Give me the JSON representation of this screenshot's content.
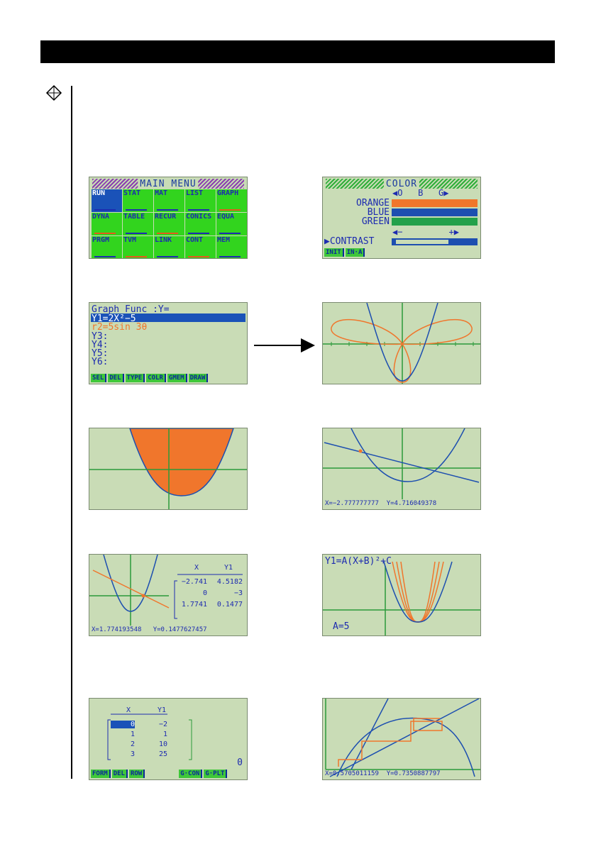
{
  "screens": {
    "main_menu": {
      "title": "MAIN MENU",
      "items": [
        {
          "label": "RUN"
        },
        {
          "label": "STAT"
        },
        {
          "label": "MAT"
        },
        {
          "label": "LIST"
        },
        {
          "label": "GRAPH"
        },
        {
          "label": "DYNA"
        },
        {
          "label": "TABLE"
        },
        {
          "label": "RECUR"
        },
        {
          "label": "CONICS"
        },
        {
          "label": "EQUA"
        },
        {
          "label": "PRGM"
        },
        {
          "label": "TVM"
        },
        {
          "label": "LINK"
        },
        {
          "label": "CONT"
        },
        {
          "label": "MEM"
        }
      ]
    },
    "color": {
      "title": "COLOR",
      "header": "◀O   B   G▶",
      "rows": [
        {
          "label": "ORANGE",
          "color": "#f0762c"
        },
        {
          "label": "BLUE",
          "color": "#1d4fb0"
        },
        {
          "label": "GREEN",
          "color": "#23a14a"
        }
      ],
      "minus_plus": "◀−         +▶",
      "contrast_label": "▶CONTRAST",
      "softkeys": [
        "INIT",
        "IN·A"
      ]
    },
    "graph_func": {
      "header": "Graph Func  :Y=",
      "lines": [
        "Y1=2X²−5",
        "r2=5sin 3θ",
        "Y3:",
        "Y4:",
        "Y5:",
        "Y6:"
      ],
      "softkeys": [
        "SEL",
        "DEL",
        "TYPE",
        "COLR",
        "GMEM",
        "DRAW"
      ]
    },
    "trace_readout": "X=−2.777777777  Y=4.716049378",
    "table_graph_readout": "X=1.774193548   Y=0.1477627457",
    "table_graph": {
      "headers": [
        "X",
        "Y1"
      ],
      "rows": [
        [
          "−2.741",
          "4.5182"
        ],
        [
          "0",
          "−3"
        ],
        [
          "1.7741",
          "0.1477"
        ]
      ]
    },
    "dyna": {
      "equation": "Y1=A(X+B)²+C",
      "param": "A=5"
    },
    "list_table": {
      "headers": [
        "X",
        "Y1"
      ],
      "rows": [
        [
          "0",
          "−2"
        ],
        [
          "1",
          "1"
        ],
        [
          "2",
          "10"
        ],
        [
          "3",
          "25"
        ]
      ],
      "input_value": "0",
      "softkeys": [
        "FORM",
        "DEL",
        "ROW",
        "G·CON",
        "G·PLT"
      ]
    },
    "web_readout": "X=0.5705011159  Y=0.7350887797"
  }
}
